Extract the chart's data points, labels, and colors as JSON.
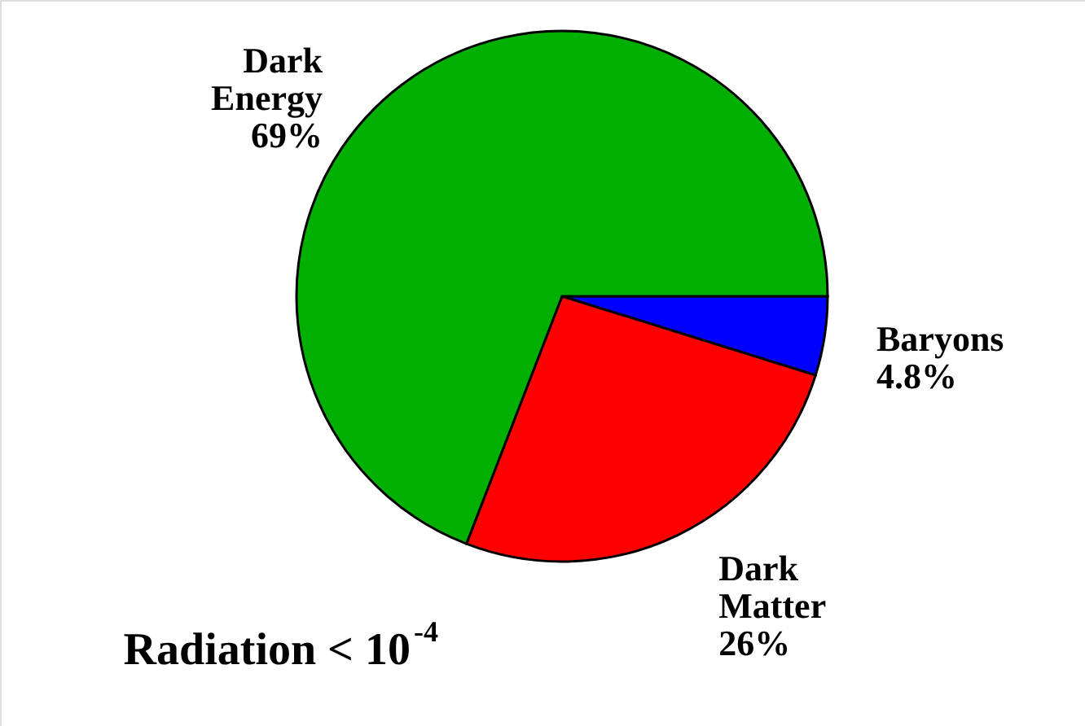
{
  "chart_data": {
    "type": "pie",
    "categories": [
      "Baryons",
      "Dark Matter",
      "Dark Energy"
    ],
    "values": [
      4.8,
      26,
      69
    ],
    "colors": [
      "#0000ff",
      "#ff0000",
      "#00b000"
    ],
    "value_labels": [
      "4.8%",
      "26%",
      "69%"
    ],
    "annotations": [
      "Radiation < 10$^{-4}$"
    ]
  }
}
